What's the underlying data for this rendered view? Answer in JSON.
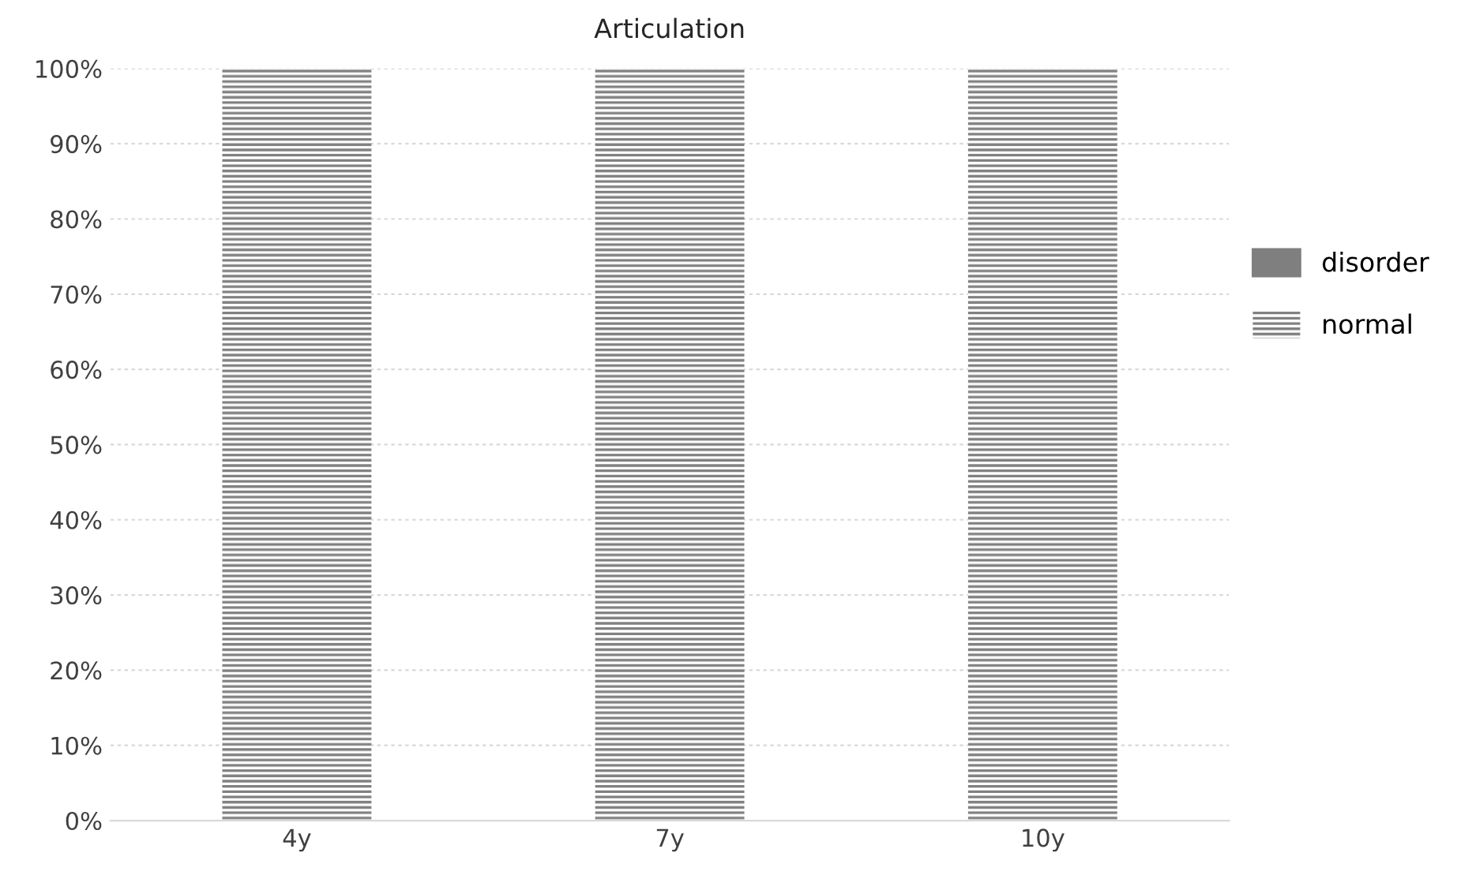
{
  "chart_data": {
    "type": "bar",
    "title": "Articulation",
    "categories": [
      "4y",
      "7y",
      "10y"
    ],
    "stacked": true,
    "series": [
      {
        "name": "disorder",
        "color": "#7f7f7f",
        "values": [
          0,
          0,
          0
        ]
      },
      {
        "name": "normal",
        "color": "#808080",
        "values": [
          100,
          100,
          100
        ]
      }
    ],
    "ylim": [
      0,
      100
    ],
    "yticks": [
      {
        "value": 0,
        "label": "0%"
      },
      {
        "value": 10,
        "label": "10%"
      },
      {
        "value": 20,
        "label": "20%"
      },
      {
        "value": 30,
        "label": "30%"
      },
      {
        "value": 40,
        "label": "40%"
      },
      {
        "value": 50,
        "label": "50%"
      },
      {
        "value": 60,
        "label": "60%"
      },
      {
        "value": 70,
        "label": "70%"
      },
      {
        "value": 80,
        "label": "80%"
      },
      {
        "value": 90,
        "label": "90%"
      },
      {
        "value": 100,
        "label": "100%"
      }
    ],
    "grid": "y",
    "legend": "right"
  }
}
